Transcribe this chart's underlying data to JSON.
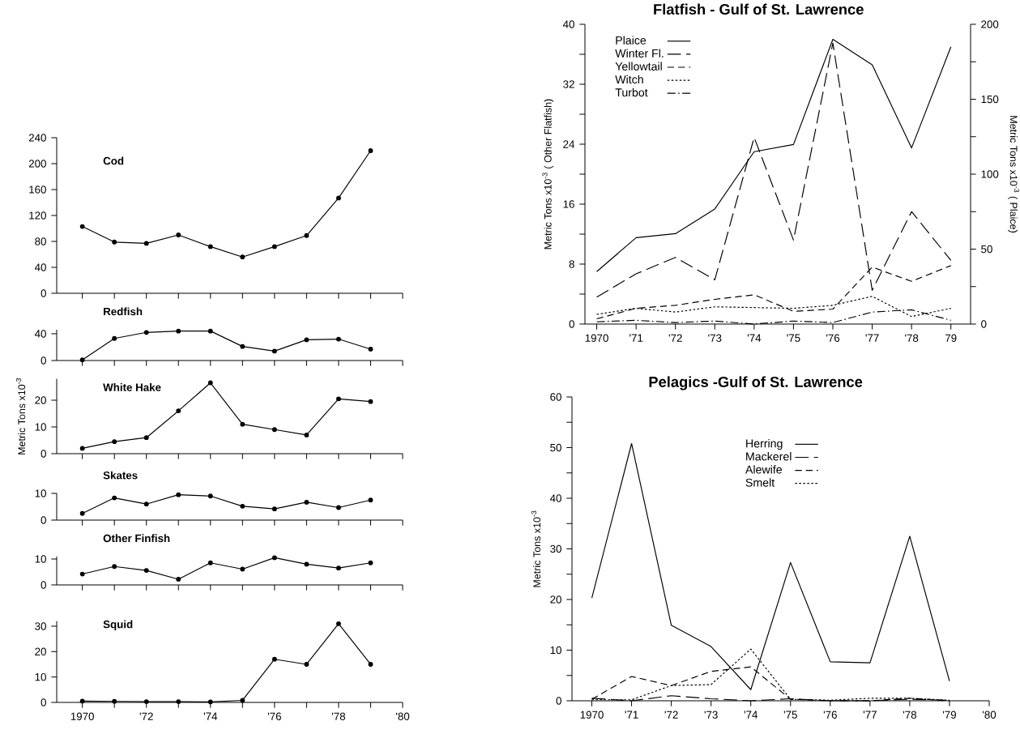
{
  "chart_data": [
    {
      "type": "line",
      "title": "Cod",
      "marker": "circle",
      "tick_labels": "y",
      "color": "#000000",
      "x": [
        1970,
        1971,
        1972,
        1973,
        1974,
        1975,
        1976,
        1977,
        1978,
        1979
      ],
      "values": [
        103,
        79,
        77,
        90,
        72,
        56,
        72,
        89,
        147,
        220
      ],
      "xlim": [
        1969.2,
        1980
      ],
      "ylim": [
        0,
        240
      ],
      "yticks": [
        0,
        40,
        80,
        120,
        160,
        200,
        240
      ],
      "xticks": [
        {
          "value": 1970,
          "label": null
        },
        {
          "value": 1971,
          "label": null
        },
        {
          "value": 1972,
          "label": null
        },
        {
          "value": 1973,
          "label": null
        },
        {
          "value": 1974,
          "label": null
        },
        {
          "value": 1975,
          "label": null
        },
        {
          "value": 1976,
          "label": null
        },
        {
          "value": 1977,
          "label": null
        },
        {
          "value": 1978,
          "label": null
        },
        {
          "value": 1979,
          "label": null
        },
        {
          "value": 1980,
          "label": null
        }
      ]
    },
    {
      "type": "line",
      "title": "Redfish",
      "marker": "circle",
      "tick_labels": "y",
      "color": "#000000",
      "x": [
        1970,
        1971,
        1972,
        1973,
        1974,
        1975,
        1976,
        1977,
        1978,
        1979
      ],
      "values": [
        1,
        33,
        42,
        44,
        44,
        21,
        14,
        31,
        32,
        17
      ],
      "xlim": [
        1969.2,
        1980
      ],
      "ylim": [
        0,
        46
      ],
      "yticks": [
        0,
        40
      ],
      "xticks": [
        {
          "value": 1970,
          "label": null
        },
        {
          "value": 1971,
          "label": null
        },
        {
          "value": 1972,
          "label": null
        },
        {
          "value": 1973,
          "label": null
        },
        {
          "value": 1974,
          "label": null
        },
        {
          "value": 1975,
          "label": null
        },
        {
          "value": 1976,
          "label": null
        },
        {
          "value": 1977,
          "label": null
        },
        {
          "value": 1978,
          "label": null
        },
        {
          "value": 1979,
          "label": null
        },
        {
          "value": 1980,
          "label": null
        }
      ]
    },
    {
      "type": "line",
      "title": "White Hake",
      "ylabel": "Metric Tons x10$^{-3}$",
      "marker": "circle",
      "tick_labels": "y",
      "color": "#000000",
      "x": [
        1970,
        1971,
        1972,
        1973,
        1974,
        1975,
        1976,
        1977,
        1978,
        1979
      ],
      "values": [
        2,
        4.5,
        6,
        16,
        26.5,
        11,
        9,
        7,
        20.5,
        19.5
      ],
      "xlim": [
        1969.2,
        1980
      ],
      "ylim": [
        0,
        28
      ],
      "yticks": [
        0,
        10,
        20
      ],
      "xticks": [
        {
          "value": 1970,
          "label": null
        },
        {
          "value": 1971,
          "label": null
        },
        {
          "value": 1972,
          "label": null
        },
        {
          "value": 1973,
          "label": null
        },
        {
          "value": 1974,
          "label": null
        },
        {
          "value": 1975,
          "label": null
        },
        {
          "value": 1976,
          "label": null
        },
        {
          "value": 1977,
          "label": null
        },
        {
          "value": 1978,
          "label": null
        },
        {
          "value": 1979,
          "label": null
        },
        {
          "value": 1980,
          "label": null
        }
      ]
    },
    {
      "type": "line",
      "title": "Skates",
      "marker": "circle",
      "tick_labels": "y",
      "color": "#000000",
      "x": [
        1970,
        1971,
        1972,
        1973,
        1974,
        1975,
        1976,
        1977,
        1978,
        1979
      ],
      "values": [
        2.5,
        8.3,
        6,
        9.5,
        9,
        5.2,
        4.2,
        6.7,
        4.7,
        7.5
      ],
      "xlim": [
        1969.2,
        1980
      ],
      "ylim": [
        0,
        10
      ],
      "yticks": [
        0,
        10
      ],
      "xticks": [
        {
          "value": 1970,
          "label": null
        },
        {
          "value": 1971,
          "label": null
        },
        {
          "value": 1972,
          "label": null
        },
        {
          "value": 1973,
          "label": null
        },
        {
          "value": 1974,
          "label": null
        },
        {
          "value": 1975,
          "label": null
        },
        {
          "value": 1976,
          "label": null
        },
        {
          "value": 1977,
          "label": null
        },
        {
          "value": 1978,
          "label": null
        },
        {
          "value": 1979,
          "label": null
        },
        {
          "value": 1980,
          "label": null
        }
      ]
    },
    {
      "type": "line",
      "title": "Other Finfish",
      "marker": "circle",
      "tick_labels": "y",
      "color": "#000000",
      "x": [
        1970,
        1971,
        1972,
        1973,
        1974,
        1975,
        1976,
        1977,
        1978,
        1979
      ],
      "values": [
        4.2,
        7.1,
        5.6,
        2.2,
        8.5,
        6.1,
        10.5,
        8,
        6.5,
        8.5
      ],
      "xlim": [
        1969.2,
        1980
      ],
      "ylim": [
        0,
        11
      ],
      "yticks": [
        0,
        10
      ],
      "xticks": [
        {
          "value": 1970,
          "label": null
        },
        {
          "value": 1971,
          "label": null
        },
        {
          "value": 1972,
          "label": null
        },
        {
          "value": 1973,
          "label": null
        },
        {
          "value": 1974,
          "label": null
        },
        {
          "value": 1975,
          "label": null
        },
        {
          "value": 1976,
          "label": null
        },
        {
          "value": 1977,
          "label": null
        },
        {
          "value": 1978,
          "label": null
        },
        {
          "value": 1979,
          "label": null
        },
        {
          "value": 1980,
          "label": null
        }
      ]
    },
    {
      "type": "line",
      "title": "Squid",
      "marker": "circle",
      "color": "#000000",
      "x": [
        1970,
        1971,
        1972,
        1973,
        1974,
        1975,
        1976,
        1977,
        1978,
        1979
      ],
      "values": [
        0.5,
        0.4,
        0.3,
        0.3,
        0.2,
        0.8,
        17,
        15,
        31,
        15
      ],
      "xlim": [
        1969.2,
        1980
      ],
      "ylim": [
        0,
        32
      ],
      "yticks": [
        0,
        10,
        20,
        30
      ],
      "xticks": [
        {
          "value": 1970,
          "label": "1970"
        },
        {
          "value": 1971,
          "label": null
        },
        {
          "value": 1972,
          "label": "'72"
        },
        {
          "value": 1973,
          "label": null
        },
        {
          "value": 1974,
          "label": "'74"
        },
        {
          "value": 1975,
          "label": null
        },
        {
          "value": 1976,
          "label": "'76"
        },
        {
          "value": 1977,
          "label": null
        },
        {
          "value": 1978,
          "label": "'78"
        },
        {
          "value": 1979,
          "label": null
        },
        {
          "value": 1980,
          "label": "'80"
        }
      ]
    },
    {
      "type": "line",
      "title": "Flatfish - Gulf of St. Lawrence",
      "ylabel": "Metric Tons x10$^{-3}$ ( Other Flatfish)",
      "y2label": "Metric Tons x10$^{-3}$ ( Plaice)",
      "legend": "top left",
      "x": [
        1970,
        1971,
        1972,
        1973,
        1974,
        1975,
        1976,
        1977,
        1978,
        1979
      ],
      "xlim": [
        1969.7,
        1979.5
      ],
      "ylim": [
        0,
        40
      ],
      "y2lim": [
        0,
        200
      ],
      "xticks": [
        {
          "value": 1970,
          "label": "1970"
        },
        {
          "value": 1971,
          "label": "'71"
        },
        {
          "value": 1972,
          "label": "'72"
        },
        {
          "value": 1973,
          "label": "'73"
        },
        {
          "value": 1974,
          "label": "'74"
        },
        {
          "value": 1975,
          "label": "'75"
        },
        {
          "value": 1976,
          "label": "'76"
        },
        {
          "value": 1977,
          "label": "'77"
        },
        {
          "value": 1978,
          "label": "'78"
        },
        {
          "value": 1979,
          "label": "79"
        }
      ],
      "yticks": [
        0,
        {
          "value": 4,
          "label": null
        },
        8,
        {
          "value": 12,
          "label": null
        },
        16,
        {
          "value": 20,
          "label": null
        },
        24,
        {
          "value": 28,
          "label": null
        },
        32,
        {
          "value": 36,
          "label": null
        },
        40
      ],
      "y2ticks": [
        0,
        {
          "value": 25,
          "label": null
        },
        50,
        {
          "value": 75,
          "label": null
        },
        100,
        {
          "value": 125,
          "label": null
        },
        150,
        {
          "value": 175,
          "label": null
        },
        200
      ],
      "series": [
        {
          "name": "Plaice",
          "color": "#000000",
          "line_style": "solid",
          "axis": "y2",
          "values": [
            35,
            57.6,
            60.3,
            76.8,
            115,
            119.8,
            190,
            173,
            117.5,
            185
          ]
        },
        {
          "name": "Winter Fl.",
          "color": "#000000",
          "line_style": "longdash",
          "values": [
            3.6,
            6.7,
            8.9,
            5.9,
            24.9,
            11.2,
            37.5,
            4.5,
            15,
            8.5
          ]
        },
        {
          "name": "Yellowtail",
          "color": "#000000",
          "line_style": "dashed",
          "values": [
            0.7,
            2.1,
            2.5,
            3.3,
            3.9,
            1.7,
            2.0,
            7.6,
            5.7,
            7.8
          ]
        },
        {
          "name": "Witch",
          "color": "#000000",
          "line_style": "dotted",
          "values": [
            1.3,
            2.1,
            1.6,
            2.3,
            2.2,
            2.1,
            2.5,
            3.7,
            1.0,
            2.1
          ]
        },
        {
          "name": "Turbot",
          "color": "#000000",
          "line_style": "dashdot",
          "values": [
            0.3,
            0.5,
            0.2,
            0.4,
            0,
            0.4,
            0.2,
            1.6,
            1.9,
            0.5
          ]
        }
      ]
    },
    {
      "type": "line",
      "title": "Pelagics -Gulf of St. Lawrence",
      "ylabel": "Metric Tons x10$^{-3}$",
      "legend": "top",
      "x": [
        1970,
        1971,
        1972,
        1973,
        1974,
        1975,
        1976,
        1977,
        1978,
        1979
      ],
      "xlim": [
        1969.5,
        1980
      ],
      "ylim": [
        0,
        60
      ],
      "xticks": [
        {
          "value": 1970,
          "label": "1970"
        },
        {
          "value": 1971,
          "label": "'71"
        },
        {
          "value": 1972,
          "label": "'72"
        },
        {
          "value": 1973,
          "label": "'73"
        },
        {
          "value": 1974,
          "label": "'74"
        },
        {
          "value": 1975,
          "label": "'75"
        },
        {
          "value": 1976,
          "label": "'76"
        },
        {
          "value": 1977,
          "label": "'77"
        },
        {
          "value": 1978,
          "label": "'78"
        },
        {
          "value": 1979,
          "label": "'79"
        },
        {
          "value": 1980,
          "label": "'80"
        }
      ],
      "yticks": [
        0,
        {
          "value": 5,
          "label": null
        },
        10,
        {
          "value": 15,
          "label": null
        },
        20,
        {
          "value": 25,
          "label": null
        },
        30,
        {
          "value": 35,
          "label": null
        },
        40,
        {
          "value": 45,
          "label": null
        },
        50,
        {
          "value": 55,
          "label": null
        },
        60
      ],
      "series": [
        {
          "name": "Herring",
          "color": "#000000",
          "line_style": "solid",
          "values": [
            20.3,
            50.8,
            14.9,
            10.7,
            2.2,
            27.3,
            7.7,
            7.5,
            32.5,
            3.9
          ]
        },
        {
          "name": "Mackerel",
          "color": "#000000",
          "line_style": "longdash",
          "values": [
            0.5,
            0,
            1.0,
            0.4,
            0,
            0.4,
            0,
            0,
            0.3,
            0.1
          ]
        },
        {
          "name": "Alewife",
          "color": "#000000",
          "line_style": "dashed",
          "values": [
            0.3,
            4.8,
            3.0,
            5.8,
            6.7,
            0.3,
            0,
            0,
            0.5,
            0
          ]
        },
        {
          "name": "Smelt",
          "color": "#000000",
          "line_style": "dotted",
          "values": [
            0.2,
            0.2,
            3.0,
            3.2,
            10.2,
            0.3,
            0.1,
            0.5,
            0.5,
            0.1
          ]
        }
      ]
    }
  ]
}
